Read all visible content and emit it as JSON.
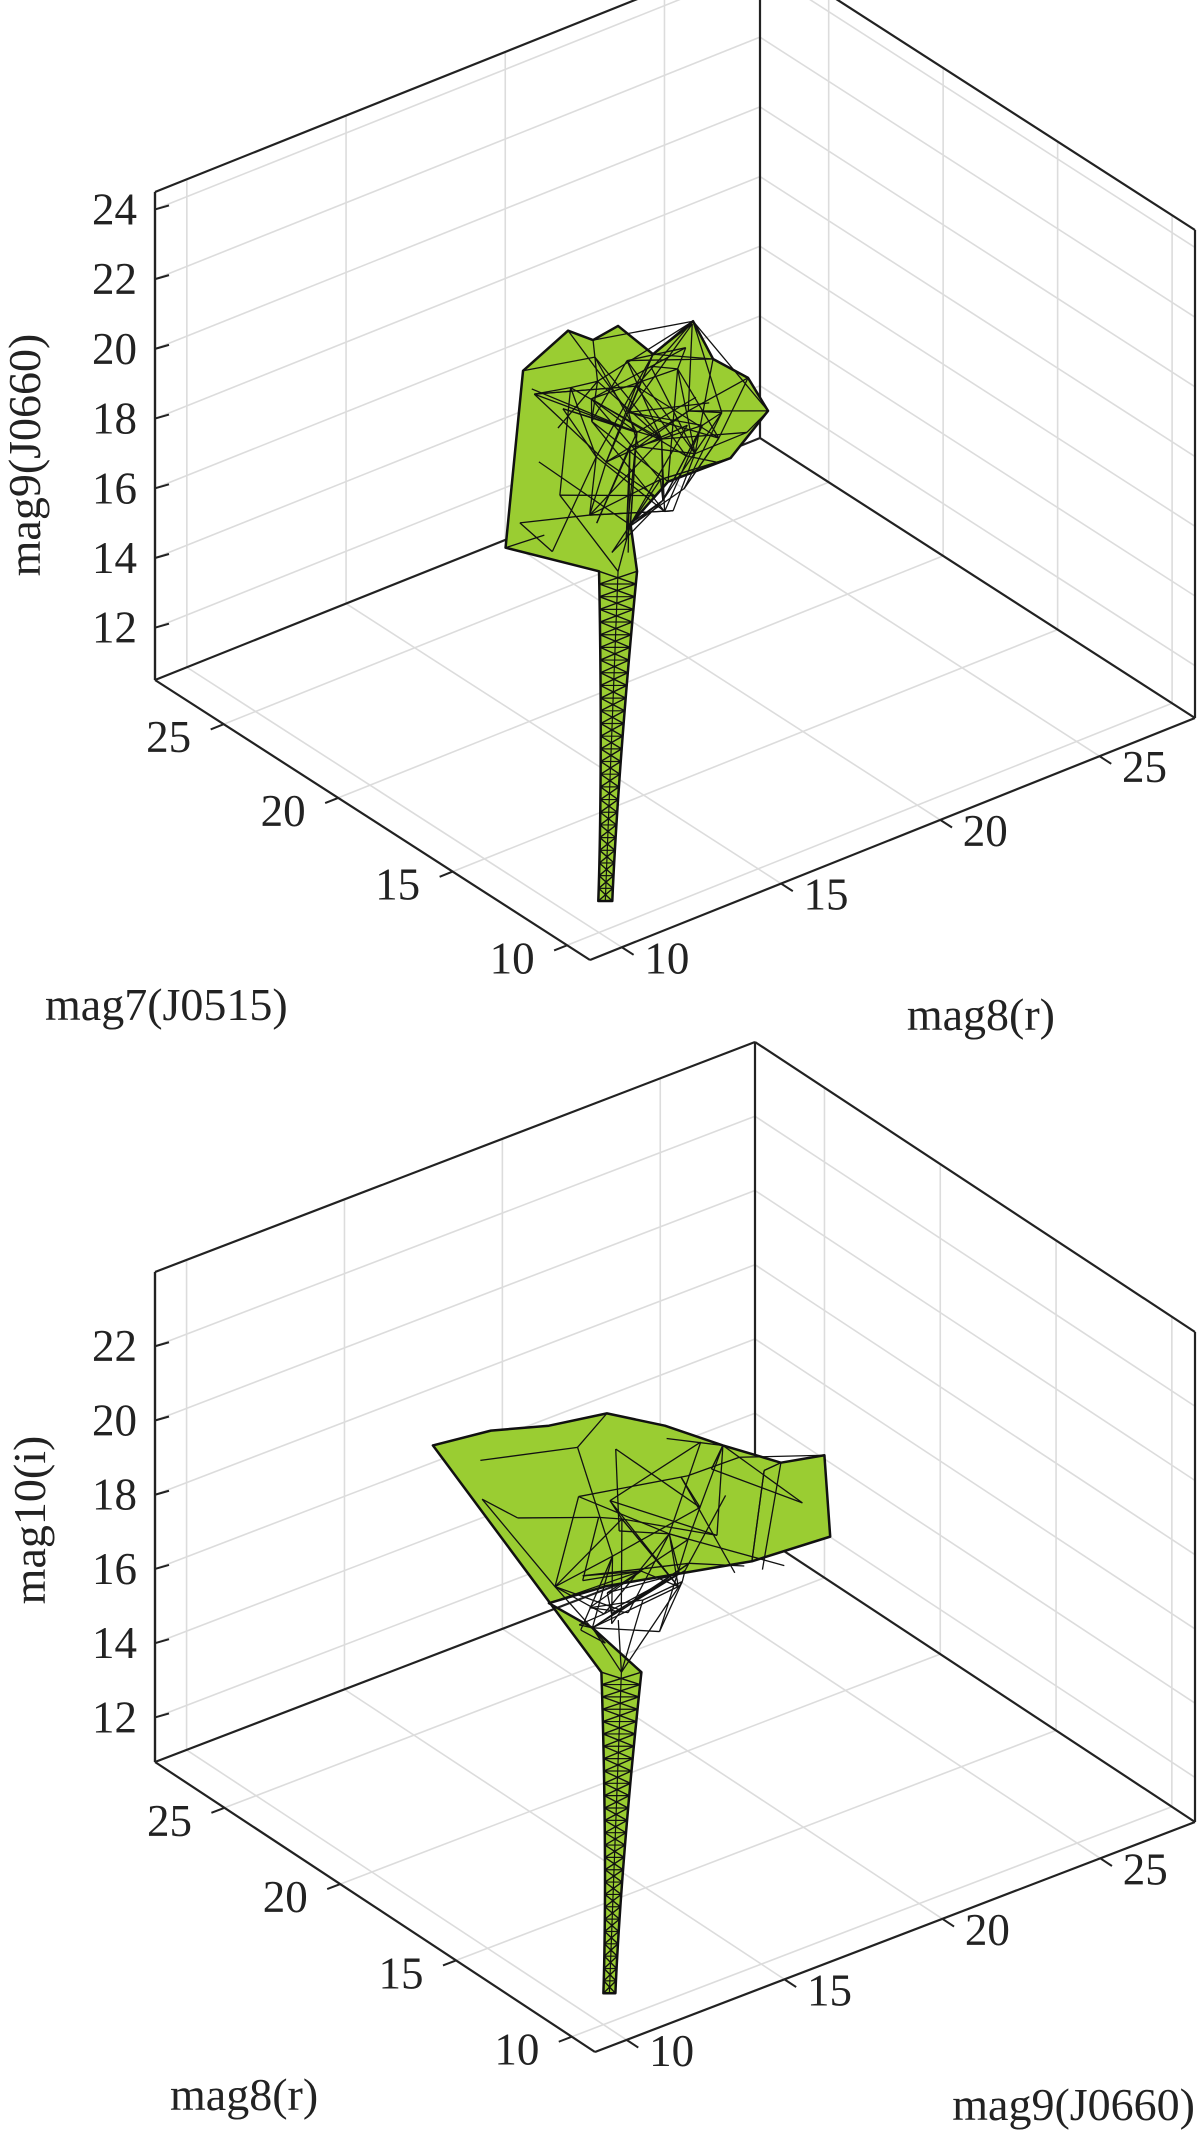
{
  "colors": {
    "surface_fill": "#9acd32",
    "mesh_edge": "#111111",
    "box_edge": "#222222",
    "grid": "#dcdcdc",
    "background": "#ffffff"
  },
  "chart_data": [
    {
      "type": "3d-surface",
      "xlabel": "mag7(J0515)",
      "ylabel": "mag8(r)",
      "zlabel": "mag9(J0660)",
      "xticks": [
        10,
        15,
        20,
        25
      ],
      "yticks": [
        10,
        15,
        20,
        25
      ],
      "zticks": [
        12,
        14,
        16,
        18,
        20,
        22,
        24
      ],
      "xlim": [
        9,
        28
      ],
      "ylim": [
        9,
        28
      ],
      "zlim": [
        10.5,
        24.5
      ],
      "grid": true
    },
    {
      "type": "3d-surface",
      "xlabel": "mag8(r)",
      "ylabel": "mag9(J0660)",
      "zlabel": "mag10(i)",
      "xticks": [
        10,
        15,
        20,
        25
      ],
      "yticks": [
        10,
        15,
        20,
        25
      ],
      "zticks": [
        12,
        14,
        16,
        18,
        20,
        22
      ],
      "xlim": [
        9,
        28
      ],
      "ylim": [
        9,
        28
      ],
      "zlim": [
        10.8,
        24.0
      ],
      "grid": true
    }
  ]
}
